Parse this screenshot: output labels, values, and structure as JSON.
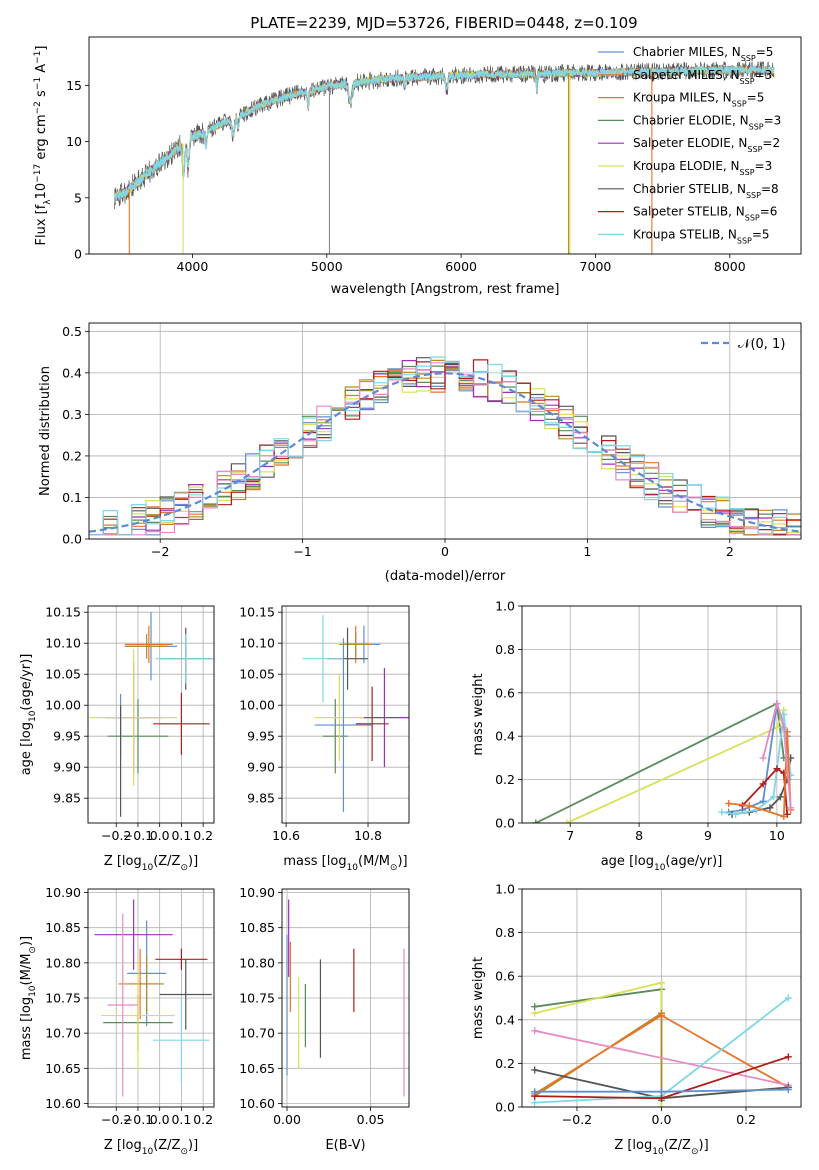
{
  "figure_title": "PLATE=2239, MJD=53726, FIBERID=0448, z=0.109",
  "models": [
    {
      "name": "Chabrier MILES",
      "nssp": "5",
      "color": "#5f8fcf"
    },
    {
      "name": "Salpeter MILES",
      "nssp": "3",
      "color": "#e8742c"
    },
    {
      "name": "Kroupa MILES",
      "nssp": "5",
      "color": "#b38a27"
    },
    {
      "name": "Chabrier ELODIE",
      "nssp": "3",
      "color": "#5a8a5a"
    },
    {
      "name": "Salpeter ELODIE",
      "nssp": "2",
      "color": "#9b30b8"
    },
    {
      "name": "Kroupa ELODIE",
      "nssp": "3",
      "color": "#d7e05a"
    },
    {
      "name": "Chabrier STELIB",
      "nssp": "8",
      "color": "#555555"
    },
    {
      "name": "Salpeter STELIB",
      "nssp": "6",
      "color": "#b01c1c"
    },
    {
      "name": "Kroupa STELIB",
      "nssp": "5",
      "color": "#7fd6e6"
    }
  ],
  "chart_data": [
    {
      "id": "spectrum",
      "type": "line",
      "title": "PLATE=2239, MJD=53726, FIBERID=0448, z=0.109",
      "xlabel": "wavelength [Angstrom, rest frame]",
      "ylabel": "Flux [f_λ 10^-17 erg cm^-2 s^-1 A^-1]",
      "xlim": [
        3230,
        8530
      ],
      "ylim": [
        0,
        19.3
      ],
      "xticks": [
        4000,
        5000,
        6000,
        7000,
        8000
      ],
      "yticks": [
        0,
        5,
        10,
        15
      ],
      "grid": false,
      "legend": "top-right",
      "continuum": {
        "x": [
          3420,
          3500,
          3600,
          3700,
          3800,
          3900,
          4000,
          4100,
          4200,
          4300,
          4400,
          4500,
          4600,
          4700,
          4800,
          4900,
          5000,
          5200,
          5400,
          5600,
          5800,
          6000,
          6200,
          6400,
          6600,
          6800,
          7000,
          7200,
          7400,
          7600,
          7800,
          8000,
          8200,
          8330
        ],
        "y": [
          5.0,
          5.5,
          6.5,
          7.5,
          8.5,
          9.5,
          10.5,
          10.8,
          11.5,
          12.0,
          12.6,
          13.2,
          13.6,
          14.0,
          14.3,
          14.6,
          14.9,
          15.2,
          15.5,
          15.7,
          15.8,
          15.9,
          16.0,
          16.0,
          16.0,
          16.1,
          16.1,
          16.2,
          16.2,
          16.3,
          16.3,
          16.4,
          16.4,
          16.3
        ]
      },
      "drops": [
        {
          "x": 3530,
          "color": "#e8742c"
        },
        {
          "x": 3930,
          "color": "#d7e05a"
        },
        {
          "x": 5020,
          "color": "#888888"
        },
        {
          "x": 6800,
          "color": "#b38a27"
        },
        {
          "x": 6810,
          "color": "#d7e05a"
        },
        {
          "x": 7420,
          "color": "#e8742c"
        }
      ]
    },
    {
      "id": "residuals",
      "type": "bar",
      "xlabel": "(data-model)/error",
      "ylabel": "Normed distribution",
      "xlim": [
        -2.5,
        2.5
      ],
      "ylim": [
        0,
        0.52
      ],
      "xticks": [
        -2,
        -1,
        0,
        1,
        2
      ],
      "yticks": [
        0.0,
        0.1,
        0.2,
        0.3,
        0.4,
        0.5
      ],
      "grid": true,
      "legend": "top-right",
      "reference_label": "𝒩(0, 1)",
      "bin_width": 0.1
    },
    {
      "id": "age-vs-z",
      "type": "scatter",
      "xlabel": "Z [log10(Z/Z⊙)]",
      "ylabel": "age  [log10(age/yr)]",
      "xlim": [
        -0.33,
        0.25
      ],
      "ylim": [
        9.81,
        10.16
      ],
      "xticks": [
        -0.2,
        -0.1,
        0.0,
        0.1,
        0.2
      ],
      "yticks": [
        9.85,
        9.9,
        9.95,
        10.0,
        10.05,
        10.1,
        10.15
      ],
      "grid": true,
      "series": [
        {
          "model": 0,
          "x": -0.04,
          "y": 10.095,
          "xerr": 0.12,
          "yerr": 0.055
        },
        {
          "model": 1,
          "x": -0.05,
          "y": 10.098,
          "xerr": 0.11,
          "yerr": 0.03
        },
        {
          "model": 2,
          "x": -0.06,
          "y": 10.095,
          "xerr": 0.1,
          "yerr": 0.02
        },
        {
          "model": 3,
          "x": -0.1,
          "y": 9.95,
          "xerr": 0.14,
          "yerr": 0.06
        },
        {
          "model": 4,
          "x": -0.12,
          "y": 9.98,
          "xerr": 0.13,
          "yerr": 0.09
        },
        {
          "model": 5,
          "x": -0.12,
          "y": 9.98,
          "xerr": 0.2,
          "yerr": 0.11
        },
        {
          "model": 6,
          "x": 0.12,
          "y": 10.075,
          "xerr": 0.12,
          "yerr": 0.05
        },
        {
          "model": 7,
          "x": 0.1,
          "y": 9.97,
          "xerr": 0.13,
          "yerr": 0.05
        },
        {
          "model": 8,
          "x": 0.12,
          "y": 10.075,
          "xerr": 0.14,
          "yerr": 0.04
        },
        {
          "model": 0,
          "x": -0.18,
          "y": 9.968,
          "xerr": 0.0,
          "yerr": 0.05
        },
        {
          "model": 4,
          "x": -0.18,
          "y": 9.968,
          "xerr": 0.0,
          "yerr": 0.0
        },
        {
          "model": 6,
          "x": -0.18,
          "y": 9.91,
          "xerr": 0.0,
          "yerr": 0.09
        }
      ]
    },
    {
      "id": "age-vs-mass",
      "type": "scatter",
      "xlabel": "mass [log10(M/M⊙)]",
      "ylabel": "",
      "xlim": [
        10.59,
        10.9
      ],
      "ylim": [
        9.81,
        10.16
      ],
      "xticks": [
        10.6,
        10.8
      ],
      "yticks": [
        9.85,
        9.9,
        9.95,
        10.0,
        10.05,
        10.1,
        10.15
      ],
      "grid": true,
      "series": [
        {
          "model": 0,
          "x": 10.79,
          "y": 10.098,
          "xerr": 0.04,
          "yerr": 0.03
        },
        {
          "model": 1,
          "x": 10.77,
          "y": 10.098,
          "xerr": 0.04,
          "yerr": 0.03
        },
        {
          "model": 2,
          "x": 10.77,
          "y": 10.098,
          "xerr": 0.03,
          "yerr": 0.02
        },
        {
          "model": 3,
          "x": 10.72,
          "y": 9.95,
          "xerr": 0.03,
          "yerr": 0.06
        },
        {
          "model": 4,
          "x": 10.84,
          "y": 9.98,
          "xerr": 0.06,
          "yerr": 0.08
        },
        {
          "model": 5,
          "x": 10.73,
          "y": 9.98,
          "xerr": 0.06,
          "yerr": 0.07
        },
        {
          "model": 6,
          "x": 10.75,
          "y": 10.075,
          "xerr": 0.05,
          "yerr": 0.05
        },
        {
          "model": 7,
          "x": 10.81,
          "y": 9.97,
          "xerr": 0.04,
          "yerr": 0.06
        },
        {
          "model": 8,
          "x": 10.69,
          "y": 10.075,
          "xerr": 0.05,
          "yerr": 0.07
        },
        {
          "model": 0,
          "x": 10.74,
          "y": 9.968,
          "xerr": 0.07,
          "yerr": 0.14
        }
      ]
    },
    {
      "id": "weight-vs-age",
      "type": "line",
      "xlabel": "age  [log10(age/yr)]",
      "ylabel": "mass weight",
      "xlim": [
        6.3,
        10.35
      ],
      "ylim": [
        0,
        1.0
      ],
      "xticks": [
        7,
        8,
        9,
        10
      ],
      "yticks": [
        0.0,
        0.2,
        0.4,
        0.6,
        0.8,
        1.0
      ],
      "grid": true,
      "series": [
        {
          "model": 3,
          "x": [
            6.5,
            10.0,
            10.1
          ],
          "y": [
            0.0,
            0.55,
            0.3
          ]
        },
        {
          "model": 5,
          "x": [
            6.95,
            10.0,
            10.1
          ],
          "y": [
            0.0,
            0.44,
            0.52
          ]
        },
        {
          "model": 0,
          "x": [
            9.3,
            9.5,
            9.8,
            10.0,
            10.15
          ],
          "y": [
            0.05,
            0.06,
            0.1,
            0.55,
            0.4
          ]
        },
        {
          "model": 6,
          "x": [
            9.35,
            9.6,
            9.9,
            10.05,
            10.15,
            10.2
          ],
          "y": [
            0.04,
            0.05,
            0.07,
            0.12,
            0.2,
            0.3
          ]
        },
        {
          "model": 8,
          "x": [
            9.2,
            9.4,
            9.7,
            9.95,
            10.1,
            10.2
          ],
          "y": [
            0.05,
            0.04,
            0.06,
            0.12,
            0.5,
            0.22
          ]
        },
        {
          "model": 7,
          "x": [
            9.5,
            9.8,
            10.0,
            10.1,
            10.15
          ],
          "y": [
            0.08,
            0.18,
            0.25,
            0.23,
            0.04
          ]
        },
        {
          "model": 1,
          "x": [
            9.3,
            9.6,
            10.1,
            10.15,
            10.2
          ],
          "y": [
            0.09,
            0.08,
            0.03,
            0.42,
            0.06
          ]
        },
        {
          "model": 9,
          "x": [
            9.8,
            10.0,
            10.1,
            10.2
          ],
          "y": [
            0.3,
            0.55,
            0.44,
            0.07
          ]
        }
      ]
    },
    {
      "id": "mass-vs-z",
      "type": "scatter",
      "xlabel": "Z [log10(Z/Z⊙)]",
      "ylabel": "mass [log10(M/M⊙)]",
      "xlim": [
        -0.33,
        0.25
      ],
      "ylim": [
        10.595,
        10.905
      ],
      "xticks": [
        -0.2,
        -0.1,
        0.0,
        0.1,
        0.2
      ],
      "yticks": [
        10.6,
        10.65,
        10.7,
        10.75,
        10.8,
        10.85,
        10.9
      ],
      "grid": true,
      "series": [
        {
          "model": 0,
          "x": -0.06,
          "y": 10.785,
          "xerr": 0.09,
          "yerr": 0.075
        },
        {
          "model": 1,
          "x": -0.09,
          "y": 10.77,
          "xerr": 0.1,
          "yerr": 0.05
        },
        {
          "model": 2,
          "x": -0.06,
          "y": 10.77,
          "xerr": 0.08,
          "yerr": 0.04
        },
        {
          "model": 3,
          "x": -0.1,
          "y": 10.715,
          "xerr": 0.16,
          "yerr": 0.04
        },
        {
          "model": 4,
          "x": -0.12,
          "y": 10.84,
          "xerr": 0.18,
          "yerr": 0.05
        },
        {
          "model": 5,
          "x": -0.1,
          "y": 10.725,
          "xerr": 0.17,
          "yerr": 0.08
        },
        {
          "model": 6,
          "x": 0.12,
          "y": 10.755,
          "xerr": 0.12,
          "yerr": 0.05
        },
        {
          "model": 7,
          "x": 0.1,
          "y": 10.805,
          "xerr": 0.12,
          "yerr": 0.015
        },
        {
          "model": 8,
          "x": 0.1,
          "y": 10.69,
          "xerr": 0.13,
          "yerr": 0.06
        },
        {
          "model": 9,
          "x": -0.17,
          "y": 10.74,
          "xerr": 0.07,
          "yerr": 0.13
        }
      ]
    },
    {
      "id": "mass-vs-ebv",
      "type": "scatter",
      "xlabel": "E(B-V)",
      "ylabel": "",
      "xlim": [
        -0.003,
        0.073
      ],
      "ylim": [
        10.595,
        10.905
      ],
      "xticks": [
        0.0,
        0.05
      ],
      "yticks": [
        10.6,
        10.65,
        10.7,
        10.75,
        10.8,
        10.85,
        10.9
      ],
      "grid": true,
      "series": [
        {
          "model": 4,
          "x": 0.001,
          "y": 10.835,
          "yerr": 0.055
        },
        {
          "model": 1,
          "x": 0.002,
          "y": 10.78,
          "yerr": 0.05
        },
        {
          "model": 0,
          "x": 0.0,
          "y": 10.74,
          "yerr": 0.1
        },
        {
          "model": 5,
          "x": 0.007,
          "y": 10.715,
          "yerr": 0.065
        },
        {
          "model": 3,
          "x": 0.011,
          "y": 10.725,
          "yerr": 0.045
        },
        {
          "model": 6,
          "x": 0.02,
          "y": 10.735,
          "yerr": 0.07
        },
        {
          "model": 7,
          "x": 0.04,
          "y": 10.775,
          "yerr": 0.045
        },
        {
          "model": 9,
          "x": 0.07,
          "y": 10.715,
          "yerr": 0.105
        }
      ]
    },
    {
      "id": "weight-vs-z",
      "type": "line",
      "xlabel": "Z [log10(Z/Z⊙)]",
      "ylabel": "mass weight",
      "xlim": [
        -0.33,
        0.33
      ],
      "ylim": [
        0,
        1.0
      ],
      "xticks": [
        -0.2,
        0.0,
        0.2
      ],
      "yticks": [
        0.0,
        0.2,
        0.4,
        0.6,
        0.8,
        1.0
      ],
      "grid": true,
      "series": [
        {
          "model": 3,
          "x": [
            -0.3,
            0.0,
            0.0
          ],
          "y": [
            0.46,
            0.54,
            0.03
          ]
        },
        {
          "model": 5,
          "x": [
            -0.3,
            0.0,
            0.0
          ],
          "y": [
            0.43,
            0.57,
            0.0
          ]
        },
        {
          "model": 2,
          "x": [
            -0.3,
            0.0,
            0.0
          ],
          "y": [
            0.05,
            0.43,
            0.04
          ]
        },
        {
          "model": 1,
          "x": [
            -0.3,
            0.0,
            0.3
          ],
          "y": [
            0.06,
            0.42,
            0.09
          ]
        },
        {
          "model": 9,
          "x": [
            -0.3,
            0.3
          ],
          "y": [
            0.35,
            0.1
          ]
        },
        {
          "model": 6,
          "x": [
            -0.3,
            0.0,
            0.3
          ],
          "y": [
            0.17,
            0.04,
            0.09
          ]
        },
        {
          "model": 8,
          "x": [
            -0.3,
            0.0,
            0.3
          ],
          "y": [
            0.02,
            0.05,
            0.5
          ]
        },
        {
          "model": 7,
          "x": [
            -0.3,
            0.0,
            0.3
          ],
          "y": [
            0.05,
            0.04,
            0.23
          ]
        },
        {
          "model": 0,
          "x": [
            -0.3,
            0.0,
            0.3
          ],
          "y": [
            0.07,
            0.07,
            0.08
          ]
        }
      ]
    }
  ]
}
